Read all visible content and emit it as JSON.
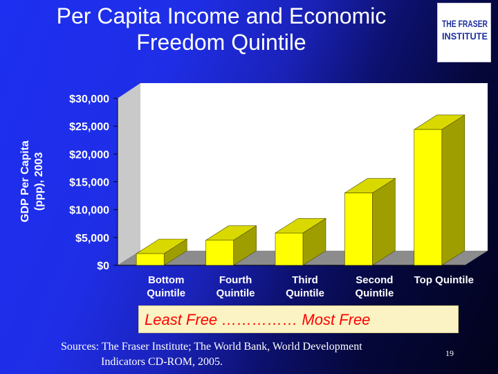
{
  "title": {
    "line1": "Per Capita Income and Economic",
    "line2": "Freedom Quintile"
  },
  "logo": {
    "line1": "THE FRASER",
    "line2": "INSTITUTE",
    "icon": "fraser-institute-logo"
  },
  "colors": {
    "bar_front": "#ffff00",
    "bar_side": "#9e9e00",
    "bar_top": "#d9d900",
    "plot_wall": "#ffffff",
    "legend_text": "#ff0000",
    "legend_bg": "#fbf3c3"
  },
  "chart_data": {
    "type": "bar",
    "style": "3d",
    "title": "",
    "xlabel": "",
    "ylabel": "GDP Per Capita (ppp), 2003",
    "ylabel_lines": [
      "GDP Per Capita",
      "(ppp), 2003"
    ],
    "ylim": [
      0,
      30000
    ],
    "yticks": [
      0,
      5000,
      10000,
      15000,
      20000,
      25000,
      30000
    ],
    "ytick_labels": [
      "$0",
      "$5,000",
      "$10,000",
      "$15,000",
      "$20,000",
      "$25,000",
      "$30,000"
    ],
    "grid": false,
    "categories": [
      [
        "Bottom",
        "Quintile"
      ],
      [
        "Fourth",
        "Quintile"
      ],
      [
        "Third",
        "Quintile"
      ],
      [
        "Second",
        "Quintile"
      ],
      [
        "Top Quintile"
      ]
    ],
    "values": [
      2100,
      4500,
      5800,
      13000,
      24400
    ]
  },
  "legend": {
    "text": "Least Free …………… Most Free"
  },
  "sources": {
    "line1": "Sources: The Fraser Institute; The World Bank, World Development",
    "line2": "Indicators CD-ROM, 2005."
  },
  "slide_number": "19"
}
